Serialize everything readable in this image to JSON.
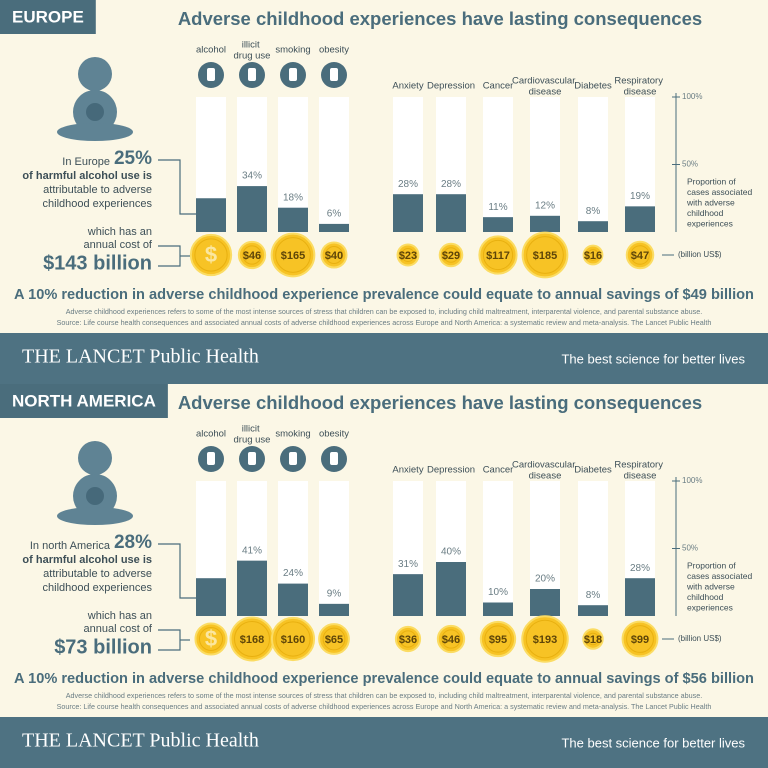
{
  "chart_data": [
    {
      "type": "bar",
      "region": "EUROPE",
      "title": "Adverse childhood experiences have lasting consequences",
      "categories": [
        "alcohol",
        "illicit drug use",
        "smoking",
        "obesity",
        "Anxiety",
        "Depression",
        "Cancer",
        "Cardiovascular disease",
        "Diabetes",
        "Respiratory disease"
      ],
      "values": [
        25,
        34,
        18,
        6,
        28,
        28,
        11,
        12,
        8,
        19
      ],
      "value_labels": [
        "25%",
        "34%",
        "18%",
        "6%",
        "28%",
        "28%",
        "11%",
        "12%",
        "8%",
        "19%"
      ],
      "costs": [
        143,
        46,
        165,
        40,
        23,
        29,
        117,
        185,
        16,
        47
      ],
      "cost_labels": [
        "$143 billion",
        "$46",
        "$165",
        "$40",
        "$23",
        "$29",
        "$117",
        "$185",
        "$16",
        "$47"
      ],
      "coin_symbol": "$",
      "cost_unit": "(billion US$)",
      "color": "#4a6d7c",
      "ylim": [
        0,
        100
      ],
      "yticks": [
        {
          "value": 100,
          "label": "100%"
        },
        {
          "value": 50,
          "label": "50%"
        }
      ],
      "axis_note": [
        "Proportion of",
        "cases associated",
        "with adverse",
        "childhood",
        "experiences"
      ],
      "intro": "In Europe",
      "intro_lines": [
        "of harmful alcohol use is",
        "attributable to adverse",
        "childhood experiences"
      ],
      "cost_intro": [
        "which has an",
        "annual cost of"
      ],
      "headline": "A 10% reduction in adverse childhood experience prevalence could equate to annual savings of $49 billion",
      "footnote": "Adverse childhood experiences refers to some of the most intense sources of stress that children can be exposed to, including child maltreatment, interparental violence, and parental substance abuse.",
      "source": "Source: Life course health consequences and associated annual costs of adverse childhood experiences across Europe and North America: a systematic review and meta-analysis. The Lancet Public Health",
      "brand": "THE LANCET Public Health",
      "tagline": "The best science for better lives"
    },
    {
      "type": "bar",
      "region": "NORTH AMERICA",
      "title": "Adverse childhood experiences have lasting consequences",
      "categories": [
        "alcohol",
        "illicit drug use",
        "smoking",
        "obesity",
        "Anxiety",
        "Depression",
        "Cancer",
        "Cardiovascular disease",
        "Diabetes",
        "Respiratory disease"
      ],
      "values": [
        28,
        41,
        24,
        9,
        31,
        40,
        10,
        20,
        8,
        28
      ],
      "value_labels": [
        "28%",
        "41%",
        "24%",
        "9%",
        "31%",
        "40%",
        "10%",
        "20%",
        "8%",
        "28%"
      ],
      "costs": [
        73,
        168,
        160,
        65,
        36,
        46,
        95,
        193,
        18,
        99
      ],
      "cost_labels": [
        "$73 billion",
        "$168",
        "$160",
        "$65",
        "$36",
        "$46",
        "$95",
        "$193",
        "$18",
        "$99"
      ],
      "coin_symbol": "$",
      "cost_unit": "(billion US$)",
      "color": "#4a6d7c",
      "ylim": [
        0,
        100
      ],
      "yticks": [
        {
          "value": 100,
          "label": "100%"
        },
        {
          "value": 50,
          "label": "50%"
        }
      ],
      "axis_note": [
        "Proportion of",
        "cases associated",
        "with adverse",
        "childhood",
        "experiences"
      ],
      "intro": "In north America",
      "intro_lines": [
        "of harmful alcohol use is",
        "attributable to adverse",
        "childhood experiences"
      ],
      "cost_intro": [
        "which has an",
        "annual cost of"
      ],
      "headline": "A 10% reduction in adverse childhood experience prevalence could equate to annual savings of $56 billion",
      "footnote": "Adverse childhood experiences refers to some of the most intense sources of stress that children can be exposed to, including child maltreatment, interparental violence, and parental substance abuse.",
      "source": "Source: Life course health consequences and associated annual costs of adverse childhood experiences across Europe and North America: a systematic review and meta-analysis. The Lancet Public Health",
      "brand": "THE LANCET Public Health",
      "tagline": "The best science for better lives"
    }
  ]
}
